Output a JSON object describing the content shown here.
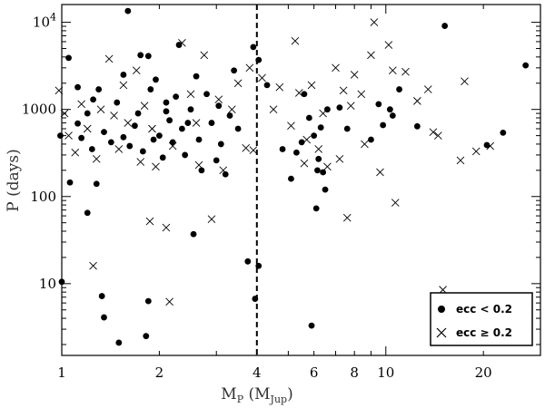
{
  "chart_data": {
    "type": "scatter",
    "x_scale": "log",
    "y_scale": "log",
    "xlim": [
      1,
      30
    ],
    "ylim": [
      1.5,
      16000
    ],
    "xlabel_main": "M",
    "xlabel_sub": "P",
    "xlabel_paren_open": " (M",
    "xlabel_paren_sub": "Jup",
    "xlabel_paren_close": ")",
    "ylabel": "P (days)",
    "x_ticks": [
      {
        "value": 1,
        "label": "1"
      },
      {
        "value": 2,
        "label": "2"
      },
      {
        "value": 4,
        "label": "4"
      },
      {
        "value": 6,
        "label": "6"
      },
      {
        "value": 8,
        "label": "8"
      },
      {
        "value": 10,
        "label": "10"
      },
      {
        "value": 20,
        "label": "20"
      }
    ],
    "y_ticks": [
      {
        "value": 10,
        "label": "10"
      },
      {
        "value": 100,
        "label": "100"
      },
      {
        "value": 1000,
        "label": "1000"
      },
      {
        "value": 10000,
        "label_base": "10",
        "label_exp": "4"
      }
    ],
    "vline": {
      "x": 4,
      "style": "dashed"
    },
    "legend": {
      "position": "bottom-right",
      "entries": [
        {
          "symbol": "dot",
          "label": "ecc < 0.2"
        },
        {
          "symbol": "cross",
          "label": "ecc ≥ 0.2"
        }
      ]
    },
    "series": [
      {
        "name": "ecc < 0.2",
        "marker": "dot",
        "points": [
          [
            1.6,
            13500
          ],
          [
            0.99,
            500
          ],
          [
            1.0,
            10.5
          ],
          [
            1.05,
            3900
          ],
          [
            1.06,
            145
          ],
          [
            1.12,
            1800
          ],
          [
            1.12,
            690
          ],
          [
            1.15,
            470
          ],
          [
            1.2,
            65
          ],
          [
            1.24,
            350
          ],
          [
            1.25,
            1300
          ],
          [
            1.28,
            140
          ],
          [
            1.33,
            7.2
          ],
          [
            1.35,
            4.1
          ],
          [
            1.5,
            2.1
          ],
          [
            1.55,
            2500
          ],
          [
            1.75,
            4200
          ],
          [
            1.85,
            4100
          ],
          [
            1.85,
            6.3
          ],
          [
            1.82,
            2.5
          ],
          [
            1.95,
            2200
          ],
          [
            2.1,
            1200
          ],
          [
            2.1,
            950
          ],
          [
            2.3,
            5500
          ],
          [
            2.45,
            700
          ],
          [
            2.55,
            37
          ],
          [
            2.6,
            2400
          ],
          [
            2.8,
            1500
          ],
          [
            3.1,
            400
          ],
          [
            3.2,
            180
          ],
          [
            3.4,
            2800
          ],
          [
            3.75,
            18
          ],
          [
            3.9,
            5200
          ],
          [
            3.95,
            6.7
          ],
          [
            4.05,
            3700
          ],
          [
            4.05,
            16
          ],
          [
            4.3,
            1900
          ],
          [
            4.8,
            350
          ],
          [
            5.3,
            320
          ],
          [
            5.6,
            1500
          ],
          [
            5.8,
            800
          ],
          [
            5.9,
            3.3
          ],
          [
            6.0,
            500
          ],
          [
            6.1,
            73
          ],
          [
            6.15,
            200
          ],
          [
            6.3,
            620
          ],
          [
            6.4,
            190
          ],
          [
            6.6,
            1000
          ],
          [
            7.6,
            600
          ],
          [
            9.0,
            450
          ],
          [
            9.5,
            1150
          ],
          [
            9.8,
            660
          ],
          [
            10.3,
            1000
          ],
          [
            10.5,
            850
          ],
          [
            11.0,
            1700
          ],
          [
            12.5,
            640
          ],
          [
            15.2,
            9100
          ],
          [
            20.5,
            390
          ],
          [
            23.0,
            540
          ],
          [
            27.0,
            3200
          ],
          [
            1.2,
            900
          ],
          [
            1.3,
            1700
          ],
          [
            1.35,
            550
          ],
          [
            1.42,
            420
          ],
          [
            1.48,
            1200
          ],
          [
            1.55,
            480
          ],
          [
            1.62,
            380
          ],
          [
            1.68,
            650
          ],
          [
            1.72,
            900
          ],
          [
            1.78,
            330
          ],
          [
            1.88,
            1700
          ],
          [
            1.92,
            450
          ],
          [
            2.0,
            500
          ],
          [
            2.05,
            280
          ],
          [
            2.15,
            750
          ],
          [
            2.2,
            420
          ],
          [
            2.25,
            1400
          ],
          [
            2.35,
            600
          ],
          [
            2.4,
            300
          ],
          [
            2.5,
            1000
          ],
          [
            2.65,
            450
          ],
          [
            2.7,
            200
          ],
          [
            2.9,
            700
          ],
          [
            3.0,
            260
          ],
          [
            3.05,
            1100
          ],
          [
            3.3,
            850
          ],
          [
            3.5,
            600
          ],
          [
            5.1,
            160
          ],
          [
            5.5,
            420
          ],
          [
            6.2,
            270
          ],
          [
            6.5,
            120
          ],
          [
            7.2,
            1050
          ]
        ]
      },
      {
        "name": "ecc ≥ 0.2",
        "marker": "cross",
        "points": [
          [
            0.98,
            1650
          ],
          [
            1.02,
            900
          ],
          [
            1.05,
            500
          ],
          [
            1.1,
            320
          ],
          [
            1.15,
            1150
          ],
          [
            1.2,
            600
          ],
          [
            1.25,
            16
          ],
          [
            1.28,
            270
          ],
          [
            1.32,
            1000
          ],
          [
            1.4,
            3800
          ],
          [
            1.45,
            850
          ],
          [
            1.5,
            350
          ],
          [
            1.55,
            1900
          ],
          [
            1.6,
            700
          ],
          [
            1.7,
            2800
          ],
          [
            1.75,
            250
          ],
          [
            1.8,
            1100
          ],
          [
            1.87,
            52
          ],
          [
            1.9,
            600
          ],
          [
            1.95,
            220
          ],
          [
            2.1,
            44
          ],
          [
            2.15,
            6.2
          ],
          [
            2.2,
            380
          ],
          [
            2.35,
            5800
          ],
          [
            2.5,
            1500
          ],
          [
            2.6,
            700
          ],
          [
            2.65,
            230
          ],
          [
            2.75,
            4200
          ],
          [
            2.9,
            55
          ],
          [
            3.05,
            1300
          ],
          [
            3.15,
            200
          ],
          [
            3.35,
            1000
          ],
          [
            3.5,
            2000
          ],
          [
            3.7,
            360
          ],
          [
            3.8,
            3000
          ],
          [
            3.9,
            340
          ],
          [
            4.15,
            2300
          ],
          [
            4.5,
            1000
          ],
          [
            4.7,
            1800
          ],
          [
            5.1,
            650
          ],
          [
            5.25,
            6100
          ],
          [
            5.4,
            1550
          ],
          [
            5.6,
            240
          ],
          [
            5.9,
            1900
          ],
          [
            6.2,
            350
          ],
          [
            6.6,
            220
          ],
          [
            7.0,
            3000
          ],
          [
            7.2,
            270
          ],
          [
            7.4,
            1650
          ],
          [
            7.6,
            57
          ],
          [
            8.0,
            2500
          ],
          [
            8.6,
            400
          ],
          [
            9.0,
            4200
          ],
          [
            9.2,
            10000
          ],
          [
            9.6,
            190
          ],
          [
            10.2,
            5500
          ],
          [
            10.5,
            2800
          ],
          [
            10.7,
            85
          ],
          [
            11.5,
            2700
          ],
          [
            12.5,
            1250
          ],
          [
            13.5,
            1700
          ],
          [
            14.5,
            500
          ],
          [
            15.0,
            8.5
          ],
          [
            17.0,
            260
          ],
          [
            17.5,
            2100
          ],
          [
            19.0,
            330
          ],
          [
            21.0,
            380
          ],
          [
            14.0,
            550
          ],
          [
            7.8,
            1100
          ],
          [
            6.4,
            900
          ],
          [
            5.7,
            450
          ],
          [
            8.4,
            1500
          ]
        ]
      }
    ]
  }
}
